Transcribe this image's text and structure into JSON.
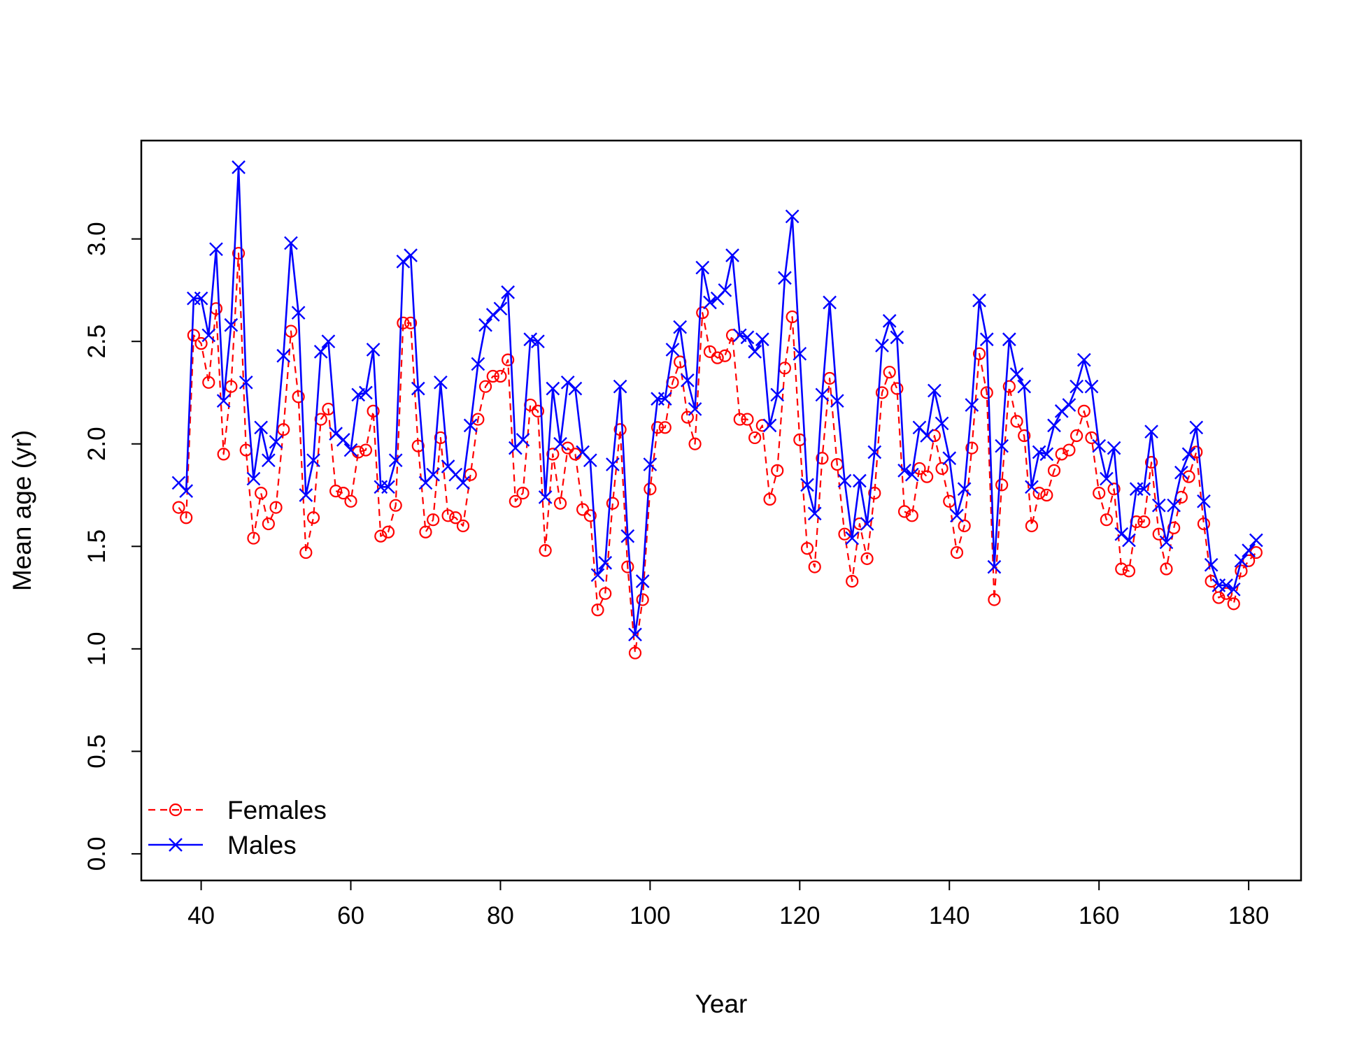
{
  "chart_data": {
    "type": "line",
    "xlabel": "Year",
    "ylabel": "Mean age (yr)",
    "xlim": [
      32,
      187
    ],
    "ylim": [
      -0.13,
      3.48
    ],
    "x_ticks": [
      40,
      60,
      80,
      100,
      120,
      140,
      160,
      180
    ],
    "y_ticks": [
      0.0,
      0.5,
      1.0,
      1.5,
      2.0,
      2.5,
      3.0
    ],
    "x_tick_labels": [
      "40",
      "60",
      "80",
      "100",
      "120",
      "140",
      "160",
      "180"
    ],
    "y_tick_labels": [
      "0.0",
      "0.5",
      "1.0",
      "1.5",
      "2.0",
      "2.5",
      "3.0"
    ],
    "grid": false,
    "legend_position": "bottom-left",
    "x": [
      37,
      38,
      39,
      40,
      41,
      42,
      43,
      44,
      45,
      46,
      47,
      48,
      49,
      50,
      51,
      52,
      53,
      54,
      55,
      56,
      57,
      58,
      59,
      60,
      61,
      62,
      63,
      64,
      65,
      66,
      67,
      68,
      69,
      70,
      71,
      72,
      73,
      74,
      75,
      76,
      77,
      78,
      79,
      80,
      81,
      82,
      83,
      84,
      85,
      86,
      87,
      88,
      89,
      90,
      91,
      92,
      93,
      94,
      95,
      96,
      97,
      98,
      99,
      100,
      101,
      102,
      103,
      104,
      105,
      106,
      107,
      108,
      109,
      110,
      111,
      112,
      113,
      114,
      115,
      116,
      117,
      118,
      119,
      120,
      121,
      122,
      123,
      124,
      125,
      126,
      127,
      128,
      129,
      130,
      131,
      132,
      133,
      134,
      135,
      136,
      137,
      138,
      139,
      140,
      141,
      142,
      143,
      144,
      145,
      146,
      147,
      148,
      149,
      150,
      151,
      152,
      153,
      154,
      155,
      156,
      157,
      158,
      159,
      160,
      161,
      162,
      163,
      164,
      165,
      166,
      167,
      168,
      169,
      170,
      171,
      172,
      173,
      174,
      175,
      176,
      177,
      178,
      179,
      180,
      181
    ],
    "series": [
      {
        "name": "Females",
        "color": "#ff0000",
        "line_style": "dashed",
        "marker": "circle",
        "values": [
          1.69,
          1.64,
          2.53,
          2.49,
          2.3,
          2.66,
          1.95,
          2.28,
          2.93,
          1.97,
          1.54,
          1.76,
          1.61,
          1.69,
          2.07,
          2.55,
          2.23,
          1.47,
          1.64,
          2.12,
          2.17,
          1.77,
          1.76,
          1.72,
          1.96,
          1.97,
          2.16,
          1.55,
          1.57,
          1.7,
          2.59,
          2.59,
          1.99,
          1.57,
          1.63,
          2.03,
          1.65,
          1.64,
          1.6,
          1.85,
          2.12,
          2.28,
          2.33,
          2.33,
          2.41,
          1.72,
          1.76,
          2.19,
          2.16,
          1.48,
          1.95,
          1.71,
          1.98,
          1.95,
          1.68,
          1.65,
          1.19,
          1.27,
          1.71,
          2.07,
          1.4,
          0.98,
          1.24,
          1.78,
          2.08,
          2.08,
          2.3,
          2.4,
          2.13,
          2.0,
          2.64,
          2.45,
          2.42,
          2.43,
          2.53,
          2.12,
          2.12,
          2.03,
          2.09,
          1.73,
          1.87,
          2.37,
          2.62,
          2.02,
          1.49,
          1.4,
          1.93,
          2.32,
          1.9,
          1.56,
          1.33,
          1.61,
          1.44,
          1.76,
          2.25,
          2.35,
          2.27,
          1.67,
          1.65,
          1.88,
          1.84,
          2.04,
          1.88,
          1.72,
          1.47,
          1.6,
          1.98,
          2.44,
          2.25,
          1.24,
          1.8,
          2.28,
          2.11,
          2.04,
          1.6,
          1.76,
          1.75,
          1.87,
          1.95,
          1.97,
          2.04,
          2.16,
          2.03,
          1.76,
          1.63,
          1.78,
          1.39,
          1.38,
          1.62,
          1.62,
          1.91,
          1.56,
          1.39,
          1.59,
          1.74,
          1.84,
          1.96,
          1.61,
          1.33,
          1.25,
          1.27,
          1.22,
          1.38,
          1.43,
          1.47
        ]
      },
      {
        "name": "Males",
        "color": "#0000ff",
        "line_style": "solid",
        "marker": "x",
        "values": [
          1.81,
          1.77,
          2.71,
          2.71,
          2.53,
          2.95,
          2.21,
          2.58,
          3.35,
          2.3,
          1.83,
          2.08,
          1.92,
          2.01,
          2.43,
          2.98,
          2.64,
          1.75,
          1.92,
          2.45,
          2.5,
          2.05,
          2.02,
          1.97,
          2.24,
          2.25,
          2.46,
          1.79,
          1.79,
          1.92,
          2.89,
          2.92,
          2.27,
          1.81,
          1.85,
          2.3,
          1.89,
          1.85,
          1.81,
          2.09,
          2.39,
          2.58,
          2.63,
          2.66,
          2.74,
          1.98,
          2.02,
          2.51,
          2.5,
          1.74,
          2.27,
          2.0,
          2.3,
          2.27,
          1.96,
          1.92,
          1.36,
          1.42,
          1.9,
          2.28,
          1.55,
          1.07,
          1.33,
          1.9,
          2.22,
          2.22,
          2.46,
          2.57,
          2.31,
          2.17,
          2.86,
          2.69,
          2.71,
          2.75,
          2.92,
          2.53,
          2.52,
          2.45,
          2.51,
          2.09,
          2.24,
          2.81,
          3.11,
          2.44,
          1.8,
          1.66,
          2.24,
          2.69,
          2.21,
          1.82,
          1.54,
          1.82,
          1.61,
          1.96,
          2.48,
          2.6,
          2.52,
          1.87,
          1.85,
          2.08,
          2.04,
          2.26,
          2.1,
          1.93,
          1.65,
          1.78,
          2.19,
          2.7,
          2.51,
          1.4,
          1.99,
          2.51,
          2.34,
          2.28,
          1.79,
          1.96,
          1.95,
          2.09,
          2.16,
          2.19,
          2.28,
          2.41,
          2.28,
          1.99,
          1.83,
          1.98,
          1.56,
          1.53,
          1.78,
          1.78,
          2.06,
          1.7,
          1.52,
          1.7,
          1.86,
          1.95,
          2.08,
          1.72,
          1.41,
          1.31,
          1.31,
          1.29,
          1.43,
          1.48,
          1.53
        ]
      }
    ]
  }
}
